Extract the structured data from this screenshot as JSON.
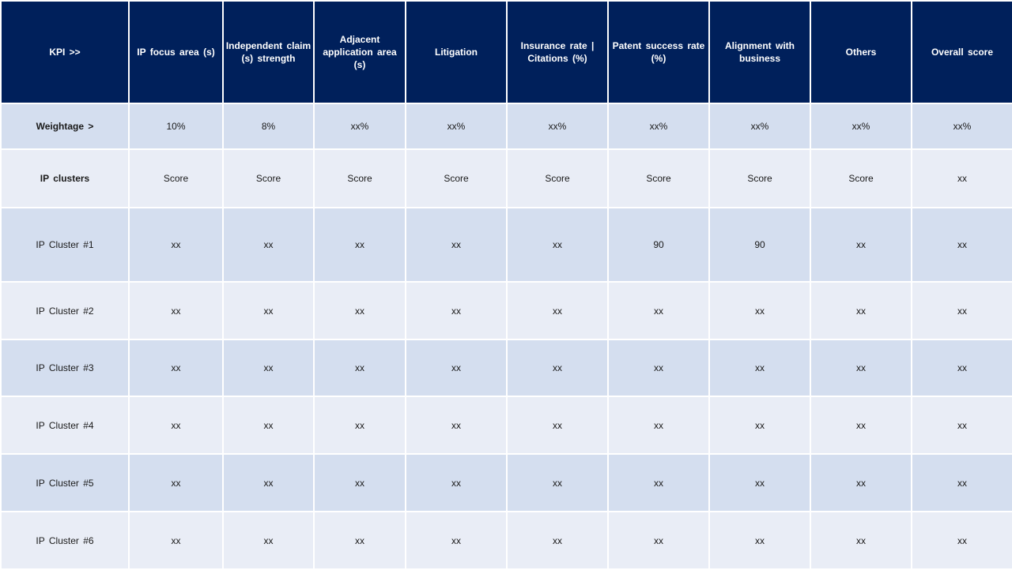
{
  "table": {
    "header": [
      "KPI >>",
      "IP focus area (s)",
      "Independent claim (s) strength",
      "Adjacent application area (s)",
      "Litigation",
      "Insurance rate | Citations (%)",
      "Patent success rate (%)",
      "Alignment with business",
      "Others",
      "Overall score"
    ],
    "weightage": {
      "label": "Weightage >",
      "values": [
        "10%",
        "8%",
        "xx%",
        "xx%",
        "xx%",
        "xx%",
        "xx%",
        "xx%",
        "xx%"
      ]
    },
    "ip_clusters": {
      "label": "IP clusters",
      "values": [
        "Score",
        "Score",
        "Score",
        "Score",
        "Score",
        "Score",
        "Score",
        "Score",
        "xx"
      ]
    },
    "rows": [
      {
        "label": "IP Cluster #1",
        "values": [
          "xx",
          "xx",
          "xx",
          "xx",
          "xx",
          "90",
          "90",
          "xx",
          "xx"
        ]
      },
      {
        "label": "IP Cluster #2",
        "values": [
          "xx",
          "xx",
          "xx",
          "xx",
          "xx",
          "xx",
          "xx",
          "xx",
          "xx"
        ]
      },
      {
        "label": "IP Cluster #3",
        "values": [
          "xx",
          "xx",
          "xx",
          "xx",
          "xx",
          "xx",
          "xx",
          "xx",
          "xx"
        ]
      },
      {
        "label": "IP Cluster #4",
        "values": [
          "xx",
          "xx",
          "xx",
          "xx",
          "xx",
          "xx",
          "xx",
          "xx",
          "xx"
        ]
      },
      {
        "label": "IP Cluster #5",
        "values": [
          "xx",
          "xx",
          "xx",
          "xx",
          "xx",
          "xx",
          "xx",
          "xx",
          "xx"
        ]
      },
      {
        "label": "IP Cluster #6",
        "values": [
          "xx",
          "xx",
          "xx",
          "xx",
          "xx",
          "xx",
          "xx",
          "xx",
          "xx"
        ]
      }
    ]
  },
  "colors": {
    "header_bg": "#00205b",
    "header_text": "#ffffff",
    "row_dark": "#d4deef",
    "row_light": "#e9edf6"
  }
}
